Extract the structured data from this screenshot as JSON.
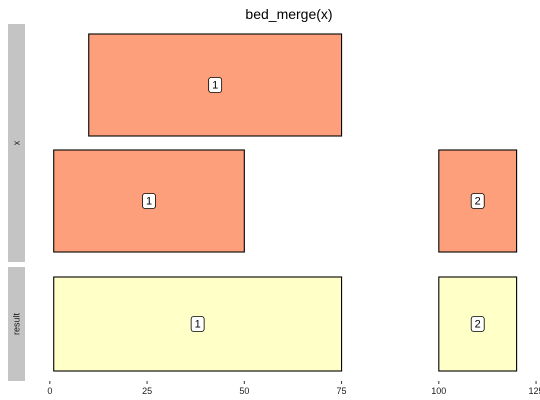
{
  "chart_data": {
    "type": "interval",
    "title": "bed_merge(x)",
    "xlabel": "",
    "ylabel": "",
    "xlim": [
      -1.5,
      125.5
    ],
    "x_ticks": [
      0,
      25,
      50,
      75,
      100,
      125
    ],
    "panels": [
      {
        "name": "x",
        "fill": "#FC9F7A",
        "rows": 2,
        "intervals": [
          {
            "start": 10,
            "end": 75,
            "row": 1,
            "label": "1"
          },
          {
            "start": 1,
            "end": 50,
            "row": 0,
            "label": "1"
          },
          {
            "start": 100,
            "end": 120,
            "row": 0,
            "label": "2"
          }
        ]
      },
      {
        "name": "result",
        "fill": "#FFFFC8",
        "rows": 1,
        "intervals": [
          {
            "start": 1,
            "end": 75,
            "row": 0,
            "label": "1"
          },
          {
            "start": 100,
            "end": 120,
            "row": 0,
            "label": "2"
          }
        ]
      }
    ],
    "colors": {
      "strip_background": "#C4C4C4",
      "box_stroke": "#000000",
      "axis": "#333333"
    }
  }
}
